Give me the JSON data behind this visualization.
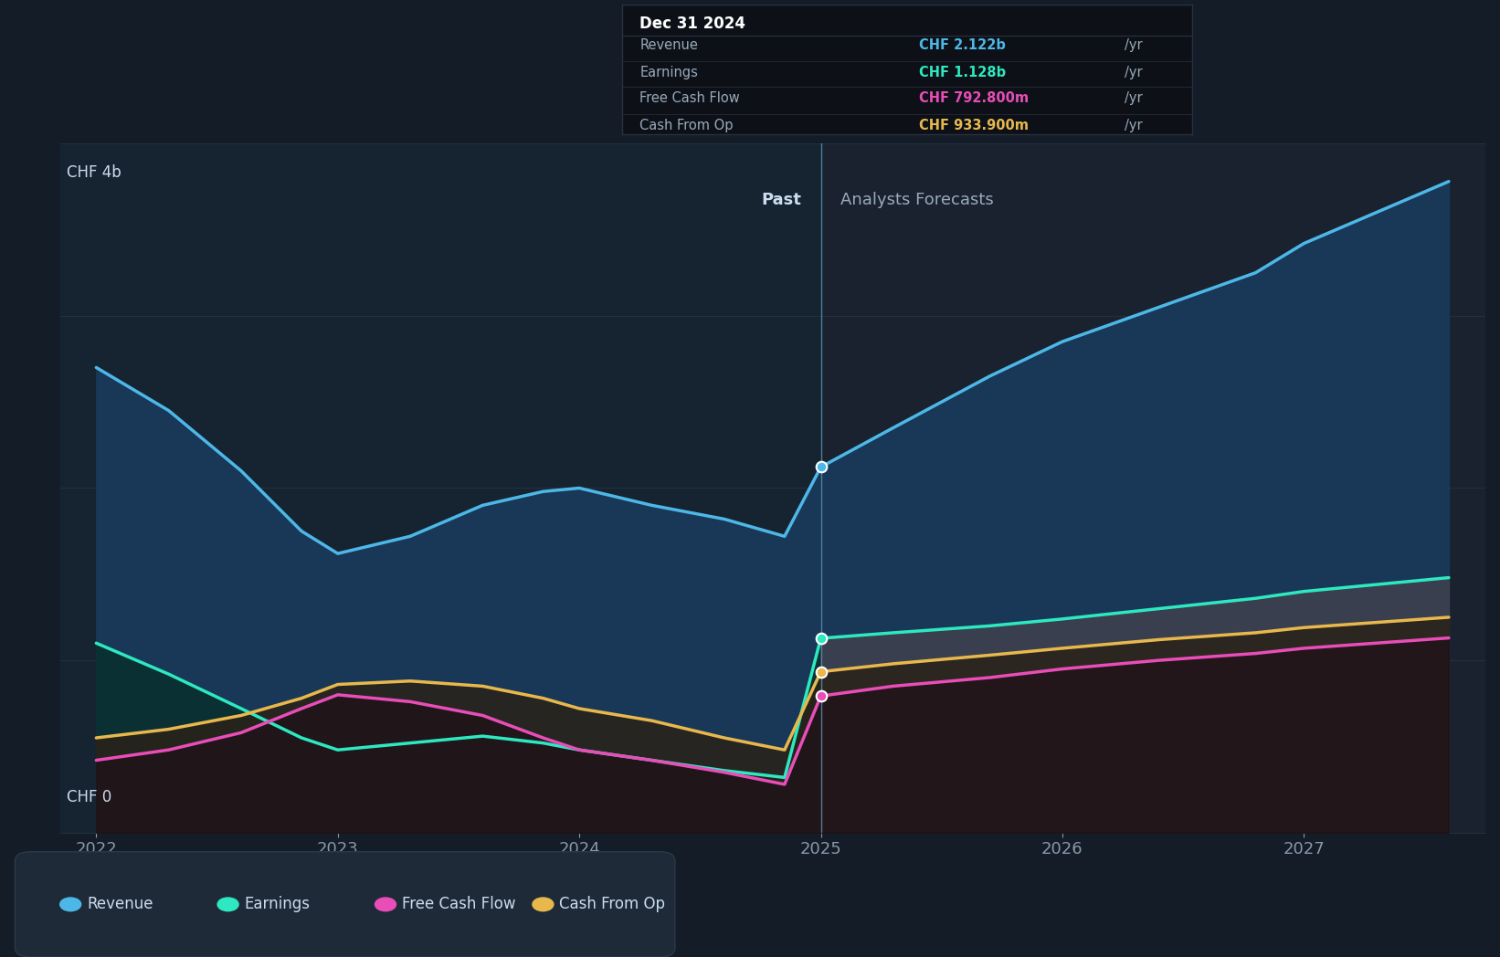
{
  "bg_color": "#131c27",
  "plot_bg_color": "#131c27",
  "grid_color": "#243040",
  "ylabel_chf4b": "CHF 4b",
  "ylabel_chf0": "CHF 0",
  "x_ticks": [
    2022,
    2023,
    2024,
    2025,
    2026,
    2027
  ],
  "divider_x": 2025.0,
  "past_label": "Past",
  "forecast_label": "Analysts Forecasts",
  "tooltip": {
    "title": "Dec 31 2024",
    "rows": [
      {
        "label": "Revenue",
        "value": "CHF 2.122b",
        "color": "#4db8e8"
      },
      {
        "label": "Earnings",
        "value": "CHF 1.128b",
        "color": "#2de8c0"
      },
      {
        "label": "Free Cash Flow",
        "value": "CHF 792.800m",
        "color": "#e84db8"
      },
      {
        "label": "Cash From Op",
        "value": "CHF 933.900m",
        "color": "#e8b84d"
      }
    ]
  },
  "revenue": {
    "color": "#4db8e8",
    "x": [
      2022.0,
      2022.3,
      2022.6,
      2022.85,
      2023.0,
      2023.3,
      2023.6,
      2023.85,
      2024.0,
      2024.3,
      2024.6,
      2024.85,
      2025.0,
      2025.3,
      2025.7,
      2026.0,
      2026.4,
      2026.8,
      2027.0,
      2027.3,
      2027.6
    ],
    "y": [
      2.7,
      2.45,
      2.1,
      1.75,
      1.62,
      1.72,
      1.9,
      1.98,
      2.0,
      1.9,
      1.82,
      1.72,
      2.122,
      2.35,
      2.65,
      2.85,
      3.05,
      3.25,
      3.42,
      3.6,
      3.78
    ]
  },
  "earnings": {
    "color": "#2de8c0",
    "x": [
      2022.0,
      2022.3,
      2022.6,
      2022.85,
      2023.0,
      2023.3,
      2023.6,
      2023.85,
      2024.0,
      2024.3,
      2024.6,
      2024.85,
      2025.0,
      2025.3,
      2025.7,
      2026.0,
      2026.4,
      2026.8,
      2027.0,
      2027.3,
      2027.6
    ],
    "y": [
      1.1,
      0.92,
      0.72,
      0.55,
      0.48,
      0.52,
      0.56,
      0.52,
      0.48,
      0.42,
      0.36,
      0.32,
      1.128,
      1.16,
      1.2,
      1.24,
      1.3,
      1.36,
      1.4,
      1.44,
      1.48
    ]
  },
  "freecashflow": {
    "color": "#e84db8",
    "x": [
      2022.0,
      2022.3,
      2022.6,
      2022.85,
      2023.0,
      2023.3,
      2023.6,
      2023.85,
      2024.0,
      2024.3,
      2024.6,
      2024.85,
      2025.0,
      2025.3,
      2025.7,
      2026.0,
      2026.4,
      2026.8,
      2027.0,
      2027.3,
      2027.6
    ],
    "y": [
      0.42,
      0.48,
      0.58,
      0.72,
      0.8,
      0.76,
      0.68,
      0.55,
      0.48,
      0.42,
      0.35,
      0.28,
      0.7928,
      0.85,
      0.9,
      0.95,
      1.0,
      1.04,
      1.07,
      1.1,
      1.13
    ]
  },
  "cashfromop": {
    "color": "#e8b84d",
    "x": [
      2022.0,
      2022.3,
      2022.6,
      2022.85,
      2023.0,
      2023.3,
      2023.6,
      2023.85,
      2024.0,
      2024.3,
      2024.6,
      2024.85,
      2025.0,
      2025.3,
      2025.7,
      2026.0,
      2026.4,
      2026.8,
      2027.0,
      2027.3,
      2027.6
    ],
    "y": [
      0.55,
      0.6,
      0.68,
      0.78,
      0.86,
      0.88,
      0.85,
      0.78,
      0.72,
      0.65,
      0.55,
      0.48,
      0.9339,
      0.98,
      1.03,
      1.07,
      1.12,
      1.16,
      1.19,
      1.22,
      1.25
    ]
  },
  "ylim": [
    0,
    4.0
  ],
  "xlim": [
    2021.85,
    2027.75
  ],
  "legend_items": [
    {
      "label": "Revenue",
      "color": "#4db8e8"
    },
    {
      "label": "Earnings",
      "color": "#2de8c0"
    },
    {
      "label": "Free Cash Flow",
      "color": "#e84db8"
    },
    {
      "label": "Cash From Op",
      "color": "#e8b84d"
    }
  ]
}
